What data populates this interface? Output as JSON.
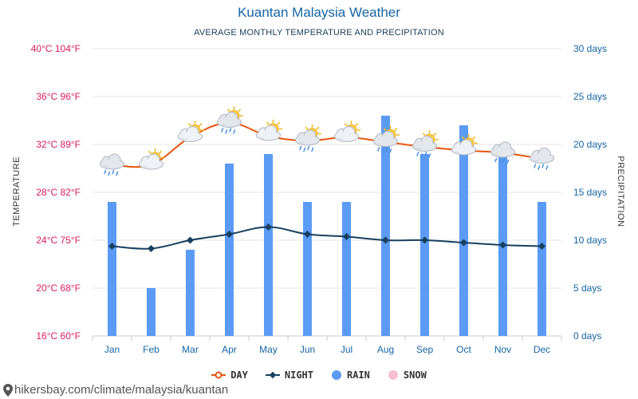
{
  "chart_data": {
    "type": "line+bar",
    "title": "Kuantan Malaysia Weather",
    "subtitle": "AVERAGE MONTHLY TEMPERATURE AND PRECIPITATION",
    "ylabel_left": "TEMPERATURE",
    "ylabel_right": "PRECIPITATION",
    "categories": [
      "Jan",
      "Feb",
      "Mar",
      "Apr",
      "May",
      "Jun",
      "Jul",
      "Aug",
      "Sep",
      "Oct",
      "Nov",
      "Dec"
    ],
    "left_axis": {
      "ylim": [
        16,
        40
      ],
      "ticks": [
        {
          "value": 16,
          "label": "16°C 60°F"
        },
        {
          "value": 20,
          "label": "20°C 68°F"
        },
        {
          "value": 24,
          "label": "24°C 75°F"
        },
        {
          "value": 28,
          "label": "28°C 82°F"
        },
        {
          "value": 32,
          "label": "32°C 89°F"
        },
        {
          "value": 36,
          "label": "36°C 96°F"
        },
        {
          "value": 40,
          "label": "40°C 104°F"
        }
      ]
    },
    "right_axis": {
      "ylim": [
        0,
        30
      ],
      "ticks": [
        {
          "value": 0,
          "label": "0 days"
        },
        {
          "value": 5,
          "label": "5 days"
        },
        {
          "value": 10,
          "label": "10 days"
        },
        {
          "value": 15,
          "label": "15 days"
        },
        {
          "value": 20,
          "label": "20 days"
        },
        {
          "value": 25,
          "label": "25 days"
        },
        {
          "value": 30,
          "label": "30 days"
        }
      ]
    },
    "series": [
      {
        "name": "DAY",
        "axis": "left",
        "color": "#e8540f",
        "values": [
          30.3,
          30.3,
          32.6,
          33.8,
          32.7,
          32.3,
          32.6,
          32.2,
          31.8,
          31.5,
          31.3,
          30.8
        ]
      },
      {
        "name": "NIGHT",
        "axis": "left",
        "color": "#17405e",
        "values": [
          23.5,
          23.3,
          24.0,
          24.5,
          25.1,
          24.5,
          24.3,
          24.0,
          24.0,
          23.8,
          23.6,
          23.5
        ]
      },
      {
        "name": "RAIN",
        "axis": "right",
        "color": "#5b9bf5",
        "values": [
          14,
          5,
          9,
          18,
          19,
          14,
          14,
          23,
          19,
          22,
          20,
          14
        ]
      },
      {
        "name": "SNOW",
        "axis": "right",
        "color": "#f7bfd2",
        "values": [
          0,
          0,
          0,
          0,
          0,
          0,
          0,
          0,
          0,
          0,
          0,
          0
        ]
      }
    ],
    "weather_icons": [
      "cloud-rain",
      "cloud-sun",
      "sun-cloud",
      "sun-cloud-rain",
      "sun-cloud",
      "sun-cloud-rain",
      "sun-cloud",
      "sun-cloud-rain",
      "sun-cloud-rain",
      "sun-cloud",
      "cloud-rain",
      "cloud-rain"
    ],
    "grid": true,
    "legend_position": "bottom"
  },
  "footer": {
    "url": "hikersbay.com/climate/malaysia/kuantan"
  }
}
